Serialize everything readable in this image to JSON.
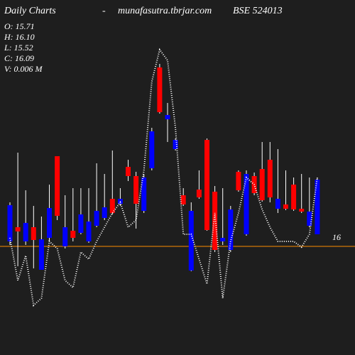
{
  "chart_data": {
    "type": "candlestick",
    "title": "Daily Charts",
    "separator": "-",
    "site": "munafasutra.tbrjar.com",
    "symbol": "BSE 524013",
    "info": [
      "O: 15.71",
      "H: 16.10",
      "L: 15.52",
      "C: 16.09",
      "V: 0.006  M"
    ],
    "categories": [
      null,
      null,
      null,
      null,
      null,
      null,
      null,
      null,
      null,
      null,
      null,
      null,
      null,
      null,
      null,
      null,
      null,
      null,
      null,
      null,
      null,
      null,
      null,
      null,
      null,
      null,
      null,
      null,
      null,
      null,
      null,
      null,
      null,
      null,
      null,
      null,
      null,
      null,
      null,
      null
    ],
    "open": [
      16.07,
      16.27,
      16.07,
      16.27,
      15.67,
      16.12,
      17.27,
      16.0,
      16.22,
      16.19,
      16.07,
      16.29,
      16.4,
      16.67,
      16.6,
      17.12,
      16.99,
      16.5,
      17.1,
      18.52,
      17.79,
      17.37,
      16.72,
      15.66,
      16.8,
      17.5,
      16.77,
      16.07,
      15.95,
      17.05,
      16.17,
      16.99,
      17.09,
      17.22,
      16.53,
      16.59,
      16.87,
      16.53,
      16.29,
      16.17
    ],
    "high": [
      16.62,
      17.32,
      16.79,
      16.57,
      16.42,
      16.87,
      17.27,
      16.72,
      16.82,
      16.82,
      16.82,
      17.17,
      17.02,
      17.35,
      16.82,
      17.22,
      17.05,
      17.02,
      17.67,
      18.57,
      18.02,
      17.52,
      16.82,
      16.62,
      17.07,
      17.52,
      16.85,
      16.82,
      16.57,
      17.07,
      17.07,
      17.04,
      17.47,
      17.47,
      17.37,
      17.07,
      16.97,
      17.02,
      16.97,
      16.97
    ],
    "low": [
      16.02,
      15.72,
      16.02,
      15.69,
      15.67,
      16.07,
      16.37,
      15.97,
      16.07,
      16.17,
      16.05,
      16.27,
      16.37,
      16.45,
      16.57,
      16.92,
      16.25,
      16.47,
      17.07,
      17.87,
      17.47,
      17.35,
      16.57,
      15.65,
      16.67,
      16.22,
      15.92,
      16.02,
      15.92,
      16.77,
      16.15,
      16.72,
      16.63,
      16.62,
      16.47,
      16.51,
      16.5,
      16.47,
      16.27,
      16.17
    ],
    "close": [
      16.58,
      16.21,
      16.33,
      16.09,
      16.1,
      16.54,
      16.43,
      16.27,
      16.12,
      16.45,
      16.35,
      16.5,
      16.55,
      16.47,
      16.67,
      16.99,
      16.6,
      16.97,
      17.62,
      17.89,
      17.85,
      17.5,
      16.59,
      16.5,
      16.69,
      16.23,
      15.95,
      16.12,
      16.52,
      16.79,
      17.02,
      16.75,
      16.65,
      16.69,
      16.67,
      16.53,
      16.52,
      16.49,
      16.49,
      16.94
    ],
    "line_values": [
      16.12,
      15.52,
      15.87,
      15.17,
      15.27,
      16.07,
      15.97,
      15.52,
      15.42,
      15.92,
      15.82,
      16.07,
      16.27,
      16.47,
      16.62,
      16.27,
      16.37,
      17.07,
      18.32,
      18.77,
      18.62,
      17.67,
      16.17,
      16.17,
      15.82,
      15.47,
      16.47,
      15.27,
      16.07,
      16.47,
      16.97,
      16.87,
      16.52,
      16.27,
      16.07,
      16.07,
      16.07,
      15.99,
      16.17,
      16.97
    ],
    "up_color": "#0000ff",
    "down_color": "#ff0000",
    "line_color": "#ffffff",
    "reference_line": 16,
    "reference_color": "#ff8c00",
    "ylim": [
      14.47,
      19.17
    ]
  }
}
